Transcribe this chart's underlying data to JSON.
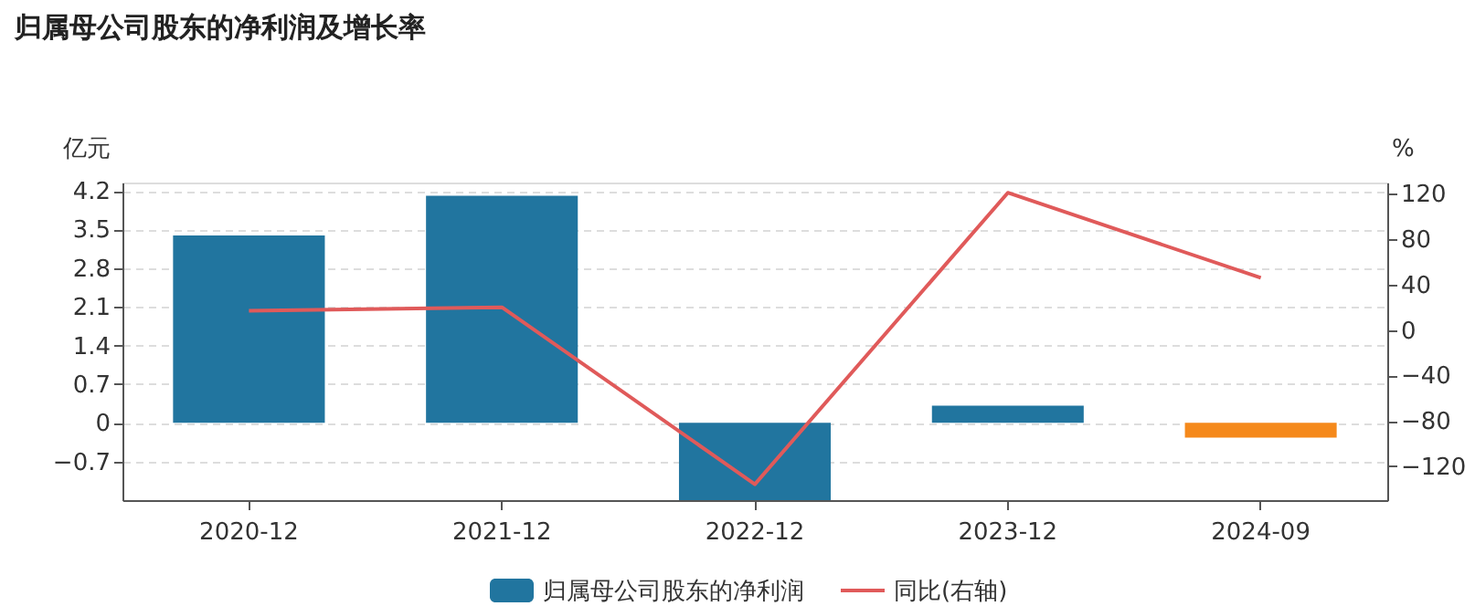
{
  "chart_data": {
    "type": "bar",
    "title": "归属母公司股东的净利润及增长率",
    "ylabel": "亿元",
    "y2label": "%",
    "categories": [
      "2020-12",
      "2021-12",
      "2022-12",
      "2023-12",
      "2024-09"
    ],
    "series": [
      {
        "name": "归属母公司股东的净利润",
        "color": "#21759f",
        "colors": [
          "#21759f",
          "#21759f",
          "#21759f",
          "#21759f",
          "#f5891b"
        ],
        "values": [
          3.39,
          4.11,
          -1.4,
          0.31,
          -0.27
        ]
      },
      {
        "name": "同比(右轴)",
        "type": "line",
        "axis": "y2",
        "color": "#e05a5a",
        "values": [
          17,
          20,
          -136,
          121,
          46
        ]
      }
    ],
    "ylim": [
      -1.4,
      4.35
    ],
    "yticks": [
      -0.7,
      0,
      0.7,
      1.4,
      2.1,
      2.8,
      3.5,
      4.2
    ],
    "y2lim": [
      -150,
      130
    ],
    "y2ticks": [
      -120,
      -80,
      -40,
      0,
      40,
      80,
      120
    ],
    "grid": "y",
    "legend": "bottom",
    "marker": "none",
    "line_style": "solid"
  }
}
